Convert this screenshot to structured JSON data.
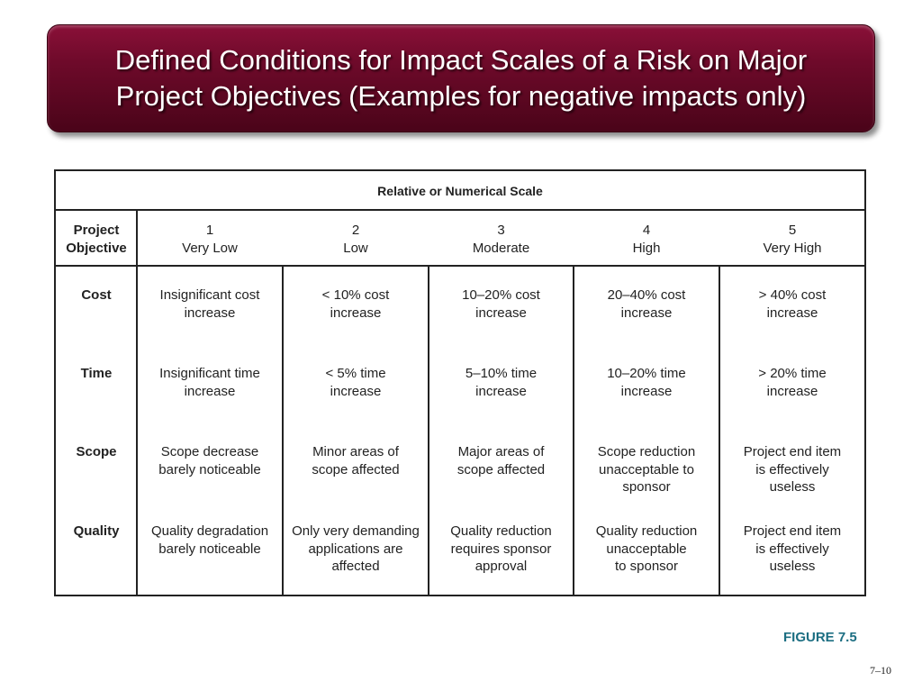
{
  "title": {
    "line1": "Defined Conditions for Impact Scales of a Risk on Major",
    "line2": "Project Objectives (Examples for negative impacts only)"
  },
  "table": {
    "scale_heading": "Relative or Numerical Scale",
    "objective_header": {
      "line1": "Project",
      "line2": "Objective"
    },
    "levels": [
      {
        "number": "1",
        "label": "Very Low"
      },
      {
        "number": "2",
        "label": "Low"
      },
      {
        "number": "3",
        "label": "Moderate"
      },
      {
        "number": "4",
        "label": "High"
      },
      {
        "number": "5",
        "label": "Very High"
      }
    ],
    "rows": [
      {
        "objective": "Cost",
        "cells": [
          [
            "Insignificant cost",
            "increase"
          ],
          [
            "< 10% cost",
            "increase"
          ],
          [
            "10–20% cost",
            "increase"
          ],
          [
            "20–40% cost",
            "increase"
          ],
          [
            "> 40% cost",
            "increase"
          ]
        ]
      },
      {
        "objective": "Time",
        "cells": [
          [
            "Insignificant time",
            "increase"
          ],
          [
            "< 5% time",
            "increase"
          ],
          [
            "5–10% time",
            "increase"
          ],
          [
            "10–20% time",
            "increase"
          ],
          [
            "> 20% time",
            "increase"
          ]
        ]
      },
      {
        "objective": "Scope",
        "cells": [
          [
            "Scope decrease",
            "barely noticeable"
          ],
          [
            "Minor areas of",
            "scope affected"
          ],
          [
            "Major areas of",
            "scope affected"
          ],
          [
            "Scope reduction",
            "unacceptable to",
            "sponsor"
          ],
          [
            "Project end item",
            "is effectively",
            "useless"
          ]
        ]
      },
      {
        "objective": "Quality",
        "cells": [
          [
            "Quality degradation",
            "barely noticeable"
          ],
          [
            "Only very demanding",
            "applications are",
            "affected"
          ],
          [
            "Quality reduction",
            "requires sponsor",
            "approval"
          ],
          [
            "Quality reduction",
            "unacceptable",
            "to sponsor"
          ],
          [
            "Project end item",
            "is effectively",
            "useless"
          ]
        ]
      }
    ]
  },
  "figure_label": "FIGURE 7.5",
  "page_number": "7–10"
}
